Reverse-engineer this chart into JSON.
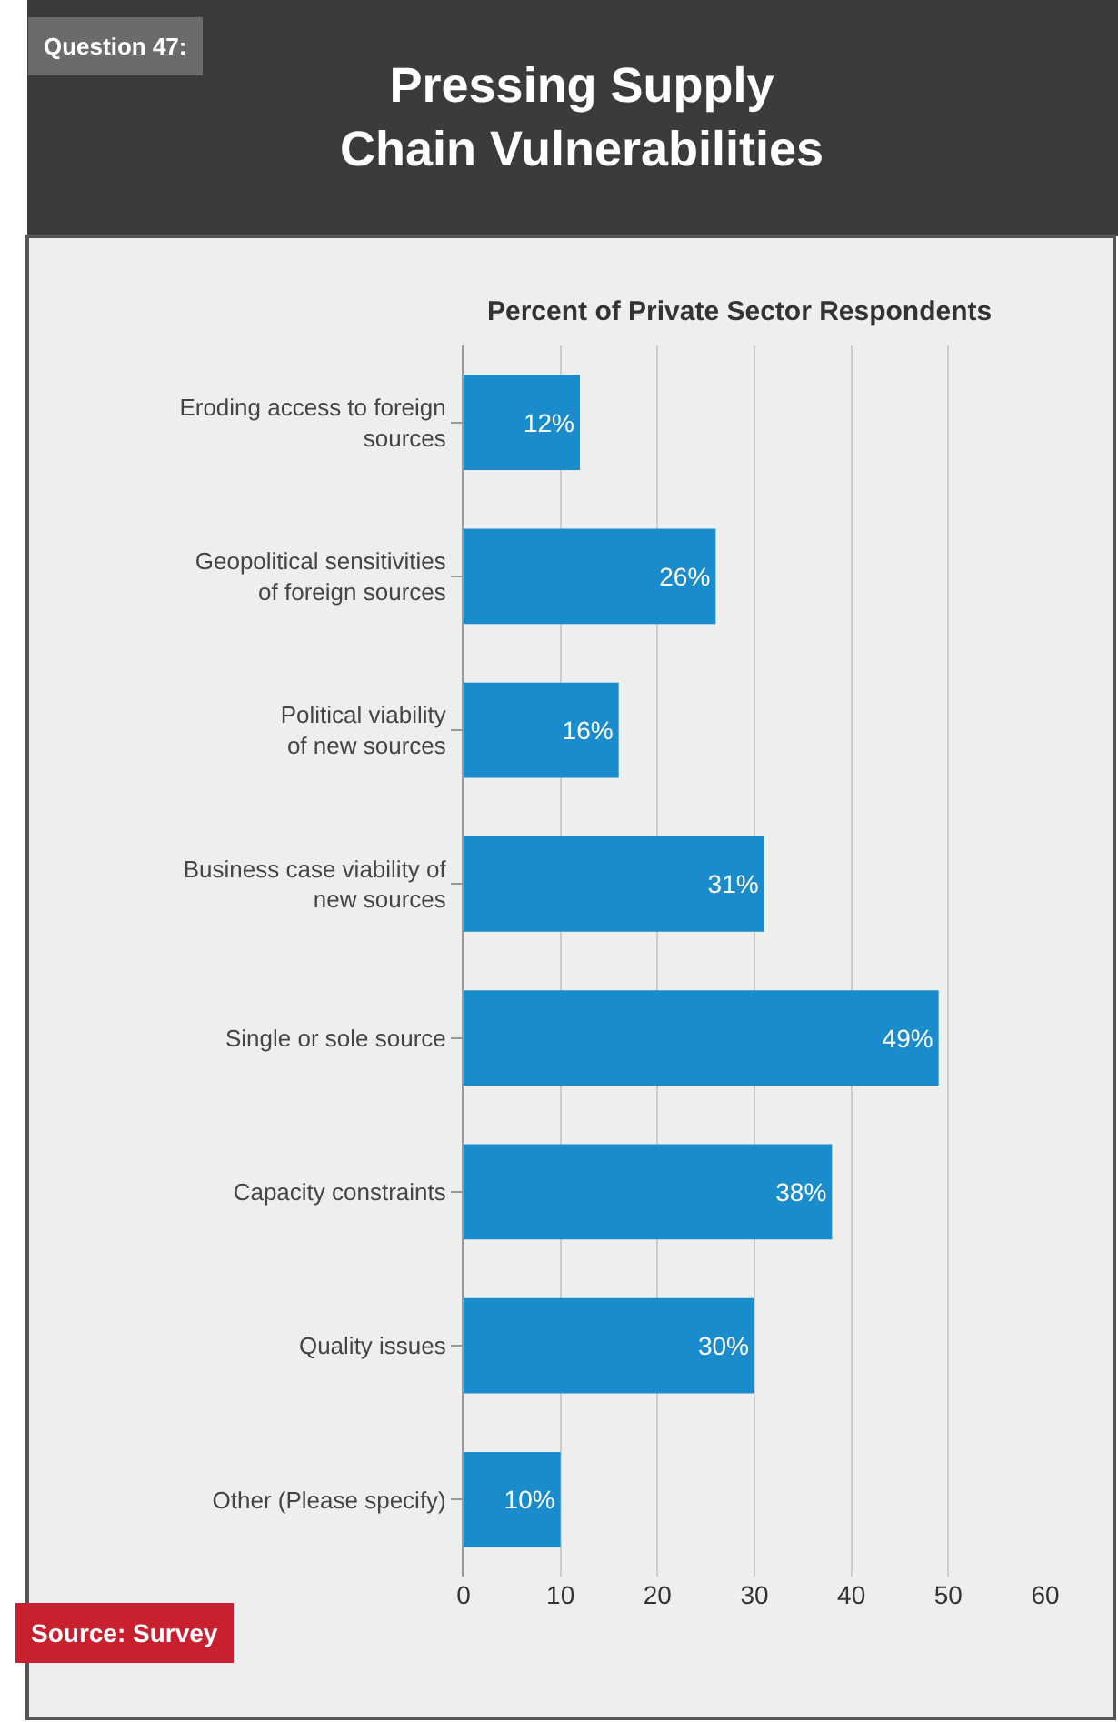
{
  "chart_data": {
    "type": "bar",
    "orientation": "horizontal",
    "title": "Pressing Supply\nChain Vulnerabilities",
    "xlabel": "Percent of Private Sector Respondents",
    "categories": [
      "Eroding access to foreign\nsources",
      "Geopolitical sensitivities\nof foreign sources",
      "Political viability\nof new sources",
      "Business case viability of\nnew sources",
      "Single or sole source",
      "Capacity constraints",
      "Quality issues",
      "Other (Please specify)"
    ],
    "values": [
      12,
      26,
      16,
      31,
      49,
      38,
      30,
      10
    ],
    "value_labels": [
      "12%",
      "26%",
      "16%",
      "31%",
      "49%",
      "38%",
      "30%",
      "10%"
    ],
    "color": "#1a8ccc",
    "xlim": [
      0,
      60
    ],
    "xticks": [
      0,
      10,
      20,
      30,
      40,
      50,
      60
    ],
    "grid": "x",
    "legend": false,
    "annotations": [
      "Question 47:",
      "Source: Survey"
    ]
  }
}
